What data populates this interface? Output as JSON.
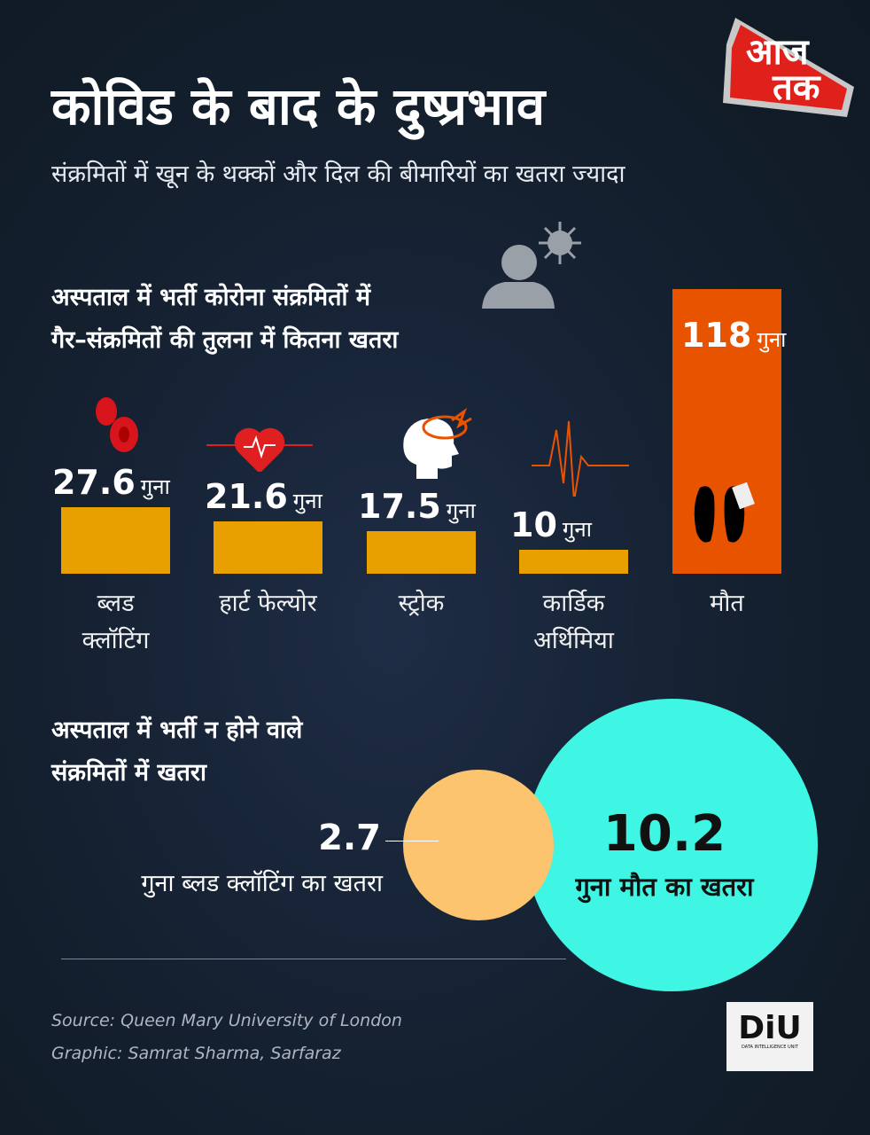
{
  "header": {
    "title": "कोविड के बाद के दुष्प्रभाव",
    "subtitle": "संक्रमितों में खून के थक्कों और दिल की बीमारियों का खतरा ज्यादा",
    "logo": "आज तक",
    "logo_color": "#e0201b"
  },
  "section1": {
    "line1": "अस्पताल में भर्ती कोरोना संक्रमितों में",
    "line2": "गैर–संक्रमितों की तुलना में कितना खतरा"
  },
  "section2": {
    "line1": "अस्पताल में भर्ती न होने वाले",
    "line2": "संक्रमितों में खतरा"
  },
  "chart_data": [
    {
      "type": "bar",
      "unit": "गुना",
      "categories": [
        "ब्लड क्लॉटिंग",
        "हार्ट फेल्योर",
        "स्ट्रोक",
        "कार्डिक अर्थिमिया",
        "मौत"
      ],
      "label_lines": [
        [
          "ब्लड",
          "क्लॉटिंग"
        ],
        [
          "हार्ट फेल्योर"
        ],
        [
          "स्ट्रोक"
        ],
        [
          "कार्डिक",
          "अर्थिमिया"
        ],
        [
          "मौत"
        ]
      ],
      "values": [
        27.6,
        21.6,
        17.5,
        10,
        118
      ],
      "value_labels": [
        "27.6",
        "21.6",
        "17.5",
        "10",
        "118"
      ],
      "icons": [
        "blood-cells-icon",
        "heart-pulse-icon",
        "head-stroke-icon",
        "ecg-line-icon",
        "feet-tag-icon"
      ],
      "colors": [
        "#e8a000",
        "#e8a000",
        "#e8a000",
        "#e8a000",
        "#e85300"
      ]
    },
    {
      "type": "bubble",
      "items": [
        {
          "value": 2.7,
          "value_label": "2.7",
          "caption": "गुना ब्लड क्लॉटिंग का खतरा",
          "color": "#fcc46e"
        },
        {
          "value": 10.2,
          "value_label": "10.2",
          "caption": "गुना मौत का खतरा",
          "color": "#3ff5e4"
        }
      ]
    }
  ],
  "footer": {
    "source": "Source: Queen Mary University of London",
    "credit": "Graphic: Samrat Sharma, Sarfaraz",
    "diu_logo": "DiU",
    "diu_sub": "DATA INTELLIGENCE UNIT"
  }
}
